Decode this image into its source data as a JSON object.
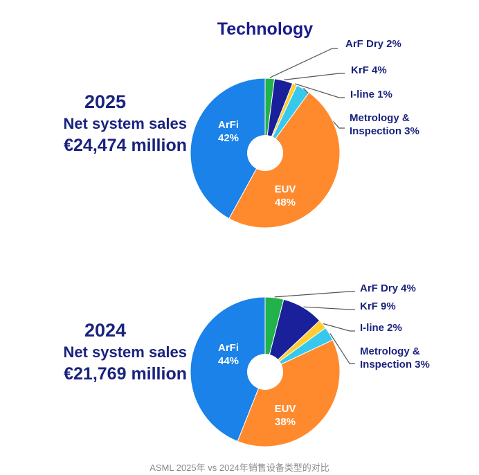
{
  "colors": {
    "ArFi": "#1a82e8",
    "EUV": "#ff8a2e",
    "ArF Dry": "#22b24c",
    "KrF": "#1a1f9a",
    "I-line": "#ffcc33",
    "Metrology": "#38c8ee",
    "title": "#1a1a8c",
    "label": "#1a237e"
  },
  "caption": "ASML 2025年 vs 2024年销售设备类型的对比",
  "chart_data": {
    "type": "pie",
    "title": "Technology",
    "charts": [
      {
        "year": "2025",
        "sales_label": "Net system sales",
        "sales_value": "€24,474 million",
        "segments": [
          {
            "key": "ArFi",
            "name": "ArFi",
            "value": 42,
            "label": "42%",
            "inner": true
          },
          {
            "key": "ArF Dry",
            "name": "ArF Dry",
            "value": 2,
            "label": "ArF Dry 2%",
            "inner": false
          },
          {
            "key": "KrF",
            "name": "KrF",
            "value": 4,
            "label": "KrF 4%",
            "inner": false
          },
          {
            "key": "I-line",
            "name": "I-line",
            "value": 1,
            "label": "I-line 1%",
            "inner": false
          },
          {
            "key": "Metrology",
            "name": "Metrology & Inspection",
            "value": 3,
            "label": "Metrology &\nInspection 3%",
            "inner": false
          },
          {
            "key": "EUV",
            "name": "EUV",
            "value": 48,
            "label": "48%",
            "inner": true
          }
        ]
      },
      {
        "year": "2024",
        "sales_label": "Net system sales",
        "sales_value": "€21,769 million",
        "segments": [
          {
            "key": "ArFi",
            "name": "ArFi",
            "value": 44,
            "label": "44%",
            "inner": true
          },
          {
            "key": "ArF Dry",
            "name": "ArF Dry",
            "value": 4,
            "label": "ArF Dry 4%",
            "inner": false
          },
          {
            "key": "KrF",
            "name": "KrF",
            "value": 9,
            "label": "KrF 9%",
            "inner": false
          },
          {
            "key": "I-line",
            "name": "I-line",
            "value": 2,
            "label": "I-line 2%",
            "inner": false
          },
          {
            "key": "Metrology",
            "name": "Metrology & Inspection",
            "value": 3,
            "label": "Metrology &\nInspection 3%",
            "inner": false
          },
          {
            "key": "EUV",
            "name": "EUV",
            "value": 38,
            "label": "38%",
            "inner": true
          }
        ]
      }
    ]
  }
}
